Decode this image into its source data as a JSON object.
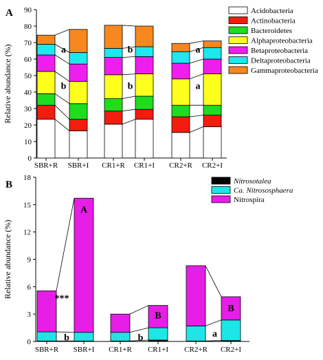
{
  "colors": {
    "Acidobacteria": "#ffffff",
    "Actinobacteria": "#f21d0f",
    "Bacteroidetes": "#1edd1e",
    "Alphaproteobacteria": "#ffff1e",
    "Betaproteobacteria": "#ee1fee",
    "Deltaproteobacteria": "#1ee7ee",
    "Gammaproteobacteria": "#f7871f",
    "Nitrosotalea": "#000000",
    "Ca. Nitrososphaera": "#1fe6e6",
    "Nitrospira": "#e61ee6"
  },
  "chart_data": [
    {
      "type": "bar",
      "panel_label": "A",
      "stacked": true,
      "categories": [
        "SBR+R",
        "SBR+I",
        "CR1+R",
        "CR1+I",
        "CR2+R",
        "CR2+I"
      ],
      "ylabel": "Relative abundance (%)",
      "xlabel": "",
      "ylim": [
        0,
        90
      ],
      "yticks": [
        "0",
        "10",
        "20",
        "30",
        "40",
        "50",
        "60",
        "70",
        "80",
        "90"
      ],
      "legend_position": "top-right",
      "series": [
        {
          "name": "Acidobacteria",
          "values": [
            23.5,
            16.5,
            20.5,
            23.5,
            15.5,
            19
          ]
        },
        {
          "name": "Actinobacteria",
          "values": [
            8.5,
            7,
            8,
            6,
            9.5,
            7
          ]
        },
        {
          "name": "Bacteroidetes",
          "values": [
            7,
            9.5,
            7.5,
            8,
            7,
            6
          ]
        },
        {
          "name": "Alphaproteobacteria",
          "values": [
            13.5,
            13.5,
            14.5,
            13.5,
            16,
            19
          ]
        },
        {
          "name": "Betaproteobacteria",
          "values": [
            10,
            10.5,
            10.5,
            10.5,
            9.5,
            9
          ]
        },
        {
          "name": "Deltaproteobacteria",
          "values": [
            6.5,
            7,
            5.5,
            6,
            7,
            7
          ]
        },
        {
          "name": "Gammaproteobacteria",
          "values": [
            5.5,
            14,
            14,
            12.5,
            5,
            4
          ]
        }
      ],
      "annotations": [
        {
          "category": "SBR+I",
          "label": "a",
          "y": 66
        },
        {
          "category": "SBR+I",
          "label": "b",
          "y": 44
        },
        {
          "category": "CR1+I",
          "label": "b",
          "y": 66
        },
        {
          "category": "CR1+I",
          "label": "b",
          "y": 44
        },
        {
          "category": "CR2+I",
          "label": "a",
          "y": 66
        },
        {
          "category": "CR2+I",
          "label": "a",
          "y": 44
        }
      ]
    },
    {
      "type": "bar",
      "panel_label": "B",
      "stacked": true,
      "categories": [
        "SBR+R",
        "SBR+I",
        "CR1+R",
        "CR1+I",
        "CR2+R",
        "CR2+I"
      ],
      "ylabel": "Relative abundance (%)",
      "xlabel": "",
      "ylim": [
        0,
        18
      ],
      "yticks": [
        "0",
        "3",
        "6",
        "9",
        "12",
        "15",
        "18"
      ],
      "legend_position": "top-right",
      "series": [
        {
          "name": "Nitrosotalea",
          "italic": true,
          "values": [
            0.05,
            0.05,
            0.05,
            0.15,
            0.05,
            0.1
          ]
        },
        {
          "name": "Ca. Nitrososphaera",
          "italic": true,
          "values": [
            1.0,
            0.95,
            0.95,
            1.35,
            1.65,
            2.25
          ]
        },
        {
          "name": "Nitrospira",
          "italic": false,
          "values": [
            4.5,
            14.7,
            2.0,
            2.45,
            6.6,
            2.55
          ]
        }
      ],
      "annotations": [
        {
          "category": "SBR+I",
          "label": "***",
          "y": 4.8,
          "side": "left"
        },
        {
          "category": "SBR+I",
          "label": "b",
          "y": 0.5
        },
        {
          "category": "SBR+I",
          "label": "A",
          "y": 14.5
        },
        {
          "category": "CR1+I",
          "label": "b",
          "y": 0.5
        },
        {
          "category": "CR1+I",
          "label": "B",
          "y": 2.9
        },
        {
          "category": "CR2+I",
          "label": "a",
          "y": 0.9
        },
        {
          "category": "CR2+I",
          "label": "B",
          "y": 3.7
        }
      ]
    }
  ]
}
